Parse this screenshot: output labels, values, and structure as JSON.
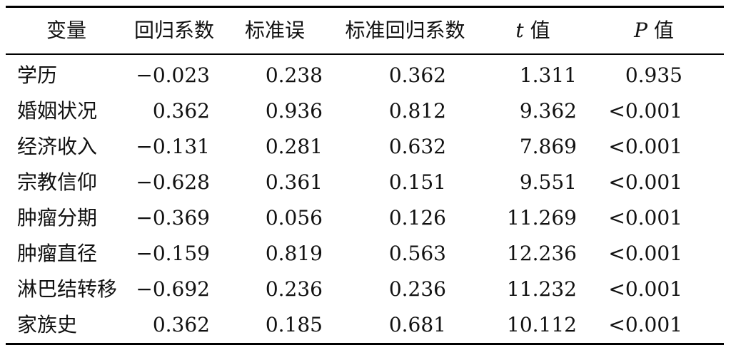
{
  "table": {
    "headers": {
      "variable": "变量",
      "coef": "回归系数",
      "se": "标准误",
      "std_coef": "标准回归系数",
      "t_symbol": "t",
      "t_suffix": " 值",
      "p_symbol": "P",
      "p_suffix": " 值"
    },
    "rows": [
      {
        "variable": "学历",
        "coef": "−0.023",
        "se": "0.238",
        "std_coef": "0.362",
        "t": "1.311",
        "p": "0.935"
      },
      {
        "variable": "婚姻状况",
        "coef": "0.362",
        "se": "0.936",
        "std_coef": "0.812",
        "t": "9.362",
        "p": "<0.001"
      },
      {
        "variable": "经济收入",
        "coef": "−0.131",
        "se": "0.281",
        "std_coef": "0.632",
        "t": "7.869",
        "p": "<0.001"
      },
      {
        "variable": "宗教信仰",
        "coef": "−0.628",
        "se": "0.361",
        "std_coef": "0.151",
        "t": "9.551",
        "p": "<0.001"
      },
      {
        "variable": "肿瘤分期",
        "coef": "−0.369",
        "se": "0.056",
        "std_coef": "0.126",
        "t": "11.269",
        "p": "<0.001"
      },
      {
        "variable": "肿瘤直径",
        "coef": "−0.159",
        "se": "0.819",
        "std_coef": "0.563",
        "t": "12.236",
        "p": "<0.001"
      },
      {
        "variable": "淋巴结转移",
        "coef": "−0.692",
        "se": "0.236",
        "std_coef": "0.236",
        "t": "11.232",
        "p": "<0.001"
      },
      {
        "variable": "家族史",
        "coef": "0.362",
        "se": "0.185",
        "std_coef": "0.681",
        "t": "10.112",
        "p": "<0.001"
      }
    ]
  }
}
